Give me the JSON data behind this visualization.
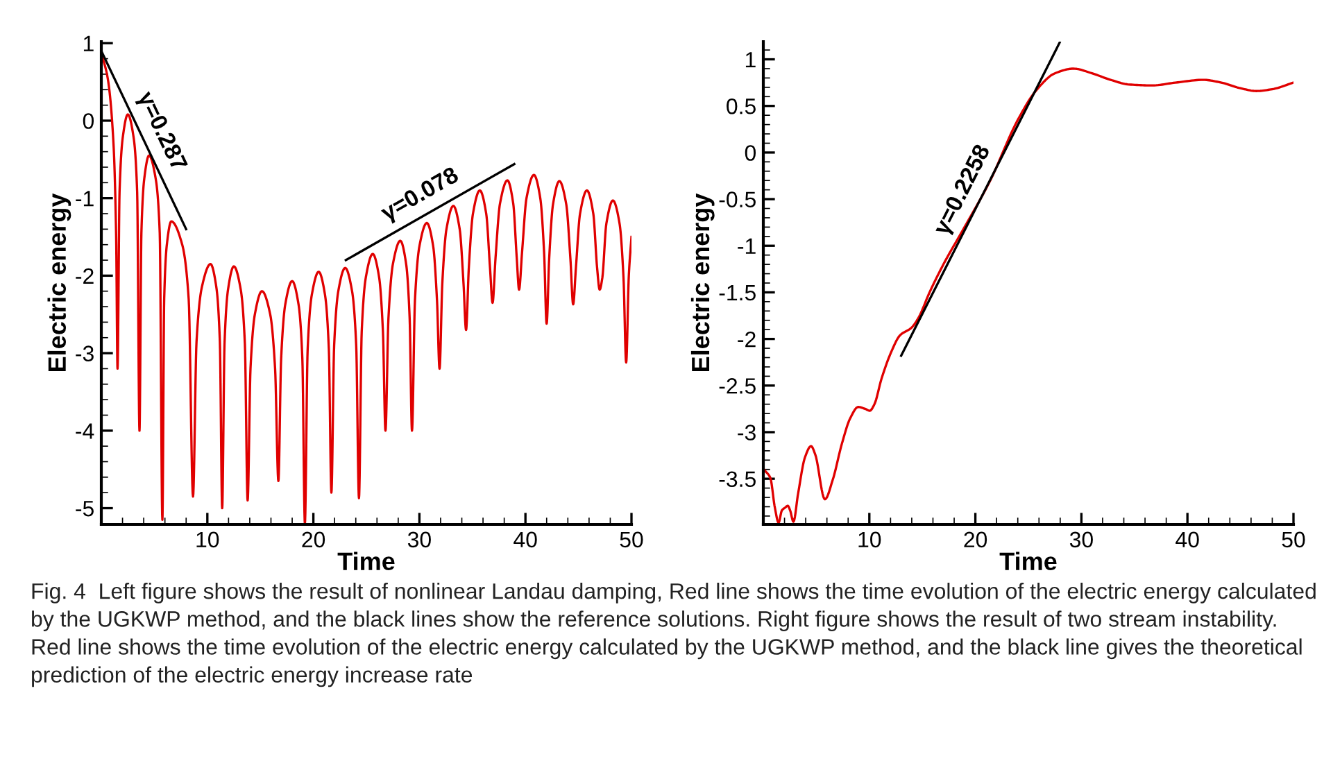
{
  "chart_data": [
    {
      "type": "line",
      "xlabel": "Time",
      "ylabel": "Electric energy",
      "xlim": [
        0,
        50
      ],
      "ylim": [
        -5.21,
        1.02
      ],
      "xticks": [
        10,
        20,
        30,
        40,
        50
      ],
      "yticks": [
        -5,
        -4,
        -3,
        -2,
        -1,
        0,
        1
      ],
      "series": [
        {
          "color": "#e00000",
          "x": [
            0,
            0.6,
            1.15,
            1.4,
            1.53,
            1.72,
            2.02,
            2.5,
            3.05,
            3.38,
            3.6,
            3.78,
            4.05,
            4.5,
            5.13,
            5.51,
            5.76,
            5.93,
            6.18,
            6.6,
            7.63,
            8.24,
            8.65,
            8.98,
            9.48,
            10.3,
            10.85,
            11.18,
            11.4,
            11.62,
            11.95,
            12.5,
            13.15,
            13.54,
            13.8,
            14.07,
            14.48,
            15.15,
            15.93,
            16.39,
            16.7,
            16.96,
            17.35,
            18.0,
            18.6,
            18.96,
            19.2,
            19.46,
            19.85,
            20.5,
            21.1,
            21.46,
            21.7,
            21.96,
            22.35,
            23.0,
            23.65,
            24.04,
            24.3,
            24.56,
            24.95,
            25.6,
            26.2,
            26.56,
            26.8,
            27.08,
            27.5,
            28.2,
            28.75,
            29.08,
            29.3,
            29.58,
            30.0,
            30.7,
            31.3,
            31.66,
            31.9,
            32.16,
            32.55,
            33.2,
            33.8,
            34.16,
            34.4,
            34.66,
            35.05,
            35.7,
            36.3,
            36.66,
            36.9,
            37.18,
            37.6,
            38.3,
            38.85,
            39.18,
            39.4,
            39.68,
            40.1,
            40.8,
            41.4,
            41.76,
            42.0,
            42.24,
            42.6,
            43.2,
            43.85,
            44.24,
            44.5,
            44.76,
            45.15,
            45.8,
            46.4,
            46.76,
            47.0,
            47.25,
            47.63,
            48.25,
            48.88,
            49.25,
            49.5,
            49.75,
            50
          ],
          "values": [
            0.87,
            0.55,
            -0.3,
            -1.5,
            -3.2,
            -0.92,
            -0.22,
            0.08,
            -0.22,
            -0.92,
            -4.0,
            -1.45,
            -0.75,
            -0.45,
            -0.75,
            -1.45,
            -5.15,
            -2.3,
            -1.6,
            -1.3,
            -1.6,
            -2.3,
            -4.85,
            -2.85,
            -2.15,
            -1.85,
            -2.15,
            -2.85,
            -5.0,
            -2.88,
            -2.18,
            -1.88,
            -2.18,
            -2.88,
            -4.9,
            -3.2,
            -2.5,
            -2.2,
            -2.5,
            -3.2,
            -4.65,
            -3.07,
            -2.37,
            -2.07,
            -2.37,
            -3.07,
            -5.2,
            -2.95,
            -2.25,
            -1.95,
            -2.25,
            -2.95,
            -4.8,
            -2.9,
            -2.2,
            -1.9,
            -2.2,
            -2.9,
            -4.87,
            -2.72,
            -2.02,
            -1.72,
            -2.02,
            -2.72,
            -4.0,
            -2.55,
            -1.85,
            -1.55,
            -1.85,
            -2.55,
            -4.0,
            -2.32,
            -1.62,
            -1.32,
            -1.62,
            -2.32,
            -3.2,
            -2.1,
            -1.4,
            -1.1,
            -1.4,
            -2.1,
            -2.7,
            -1.9,
            -1.2,
            -0.9,
            -1.2,
            -1.9,
            -2.35,
            -1.77,
            -1.07,
            -0.77,
            -1.07,
            -1.77,
            -2.18,
            -1.7,
            -1.0,
            -0.7,
            -1.0,
            -1.7,
            -2.62,
            -1.78,
            -1.08,
            -0.78,
            -1.08,
            -1.78,
            -2.37,
            -1.9,
            -1.2,
            -0.9,
            -1.2,
            -1.9,
            -2.18,
            -2.03,
            -1.33,
            -1.03,
            -1.33,
            -2.03,
            -3.12,
            -2.0,
            -1.5
          ]
        },
        {
          "type": "line",
          "color": "#000000",
          "x": [
            0,
            8.0
          ],
          "values": [
            0.9,
            -1.4
          ]
        },
        {
          "type": "line",
          "color": "#000000",
          "x": [
            23.06,
            38.95
          ],
          "values": [
            -1.8,
            -0.56
          ]
        }
      ],
      "annotations": [
        "γ=0.287",
        "γ=0.078",
        "Fig. 4  Left figure shows the result of nonlinear Landau damping, Red line shows the time evolution of the electric energy calculated by the UGKWP method, and the black lines show the reference solutions. Right figure shows the result of two stream instability. Red line shows the time evolution of the electric energy calculated by the UGKWP method, and the black line gives the theoretical prediction of the electric energy increase rate"
      ]
    },
    {
      "type": "line",
      "xlabel": "Time",
      "ylabel": "Electric energy",
      "xlim": [
        0,
        50
      ],
      "ylim": [
        -3.99,
        1.19
      ],
      "xticks": [
        10,
        20,
        30,
        40,
        50
      ],
      "yticks": [
        -3.5,
        -3,
        -2.5,
        -2,
        -1.5,
        -1,
        -0.5,
        0,
        0.5,
        1
      ],
      "series": [
        {
          "color": "#e00000",
          "x": [
            0.13,
            0.66,
            1.09,
            1.44,
            1.75,
            2.05,
            2.31,
            2.53,
            2.84,
            3.28,
            3.93,
            4.5,
            4.9,
            5.81,
            6.55,
            7.42,
            8.2,
            8.95,
            9.6,
            10.04,
            10.48,
            11.14,
            12.1,
            12.9,
            13.97,
            14.6,
            15.72,
            17.03,
            18.78,
            21.4,
            24.0,
            25.76,
            27.5,
            29.26,
            31.0,
            32.75,
            34.5,
            36.7,
            38.86,
            41.5,
            43.2,
            45.0,
            46.5,
            48.0,
            50.0
          ],
          "values": [
            -3.41,
            -3.49,
            -3.81,
            -3.97,
            -3.84,
            -3.81,
            -3.79,
            -3.84,
            -3.96,
            -3.66,
            -3.27,
            -3.15,
            -3.24,
            -3.72,
            -3.51,
            -3.12,
            -2.85,
            -2.73,
            -2.75,
            -2.77,
            -2.7,
            -2.43,
            -2.13,
            -1.96,
            -1.88,
            -1.78,
            -1.49,
            -1.19,
            -0.84,
            -0.3,
            0.35,
            0.67,
            0.85,
            0.9,
            0.85,
            0.78,
            0.73,
            0.72,
            0.75,
            0.78,
            0.75,
            0.69,
            0.66,
            0.68,
            0.75
          ]
        },
        {
          "type": "line",
          "color": "#000000",
          "x": [
            13.0,
            27.95
          ],
          "values": [
            -2.18,
            1.18
          ]
        }
      ],
      "annotations": [
        "γ=0.2258"
      ]
    }
  ]
}
